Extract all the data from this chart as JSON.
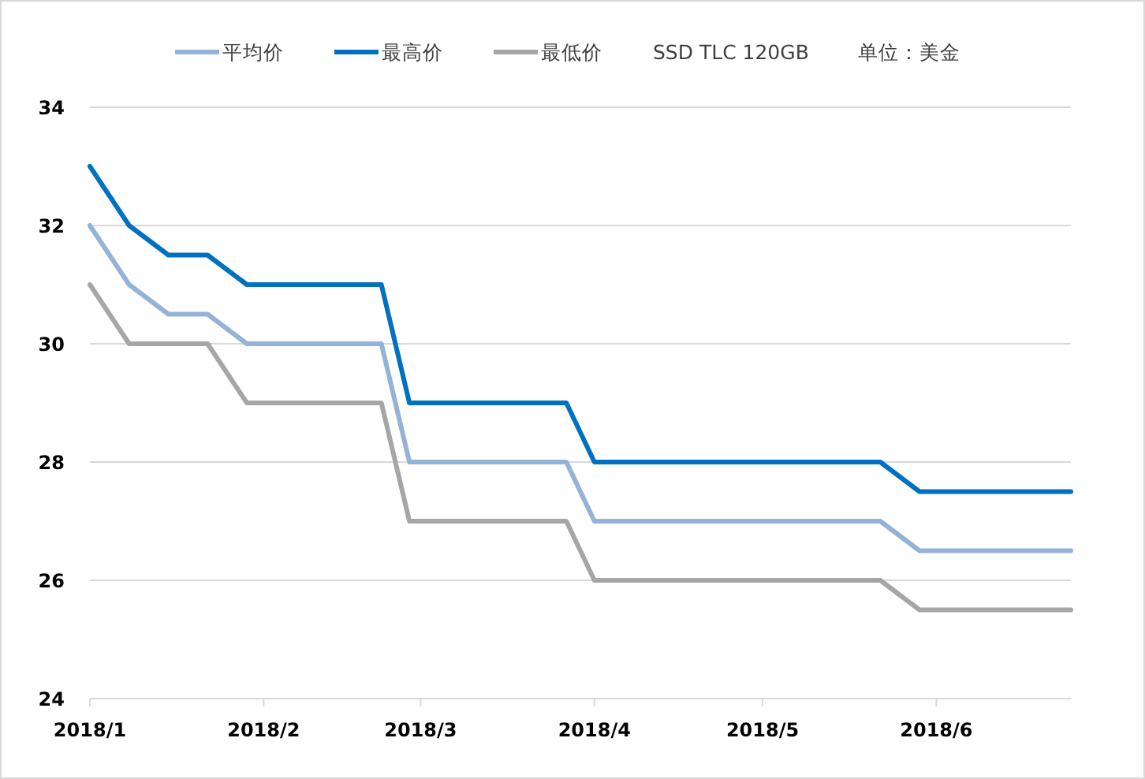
{
  "chart_data": {
    "type": "line",
    "x": [
      "2018-01-01",
      "2018-01-08",
      "2018-01-15",
      "2018-01-22",
      "2018-01-29",
      "2018-02-22",
      "2018-02-27",
      "2018-03-27",
      "2018-04-01",
      "2018-05-22",
      "2018-05-29",
      "2018-06-25"
    ],
    "series": [
      {
        "name": "平均价",
        "color": "#95b3d7",
        "values": [
          32,
          31,
          30.5,
          30.5,
          30,
          30,
          28,
          28,
          27,
          27,
          26.5,
          26.5
        ]
      },
      {
        "name": "最高价",
        "color": "#0070c0",
        "values": [
          33,
          32,
          31.5,
          31.5,
          31,
          31,
          29,
          29,
          28,
          28,
          27.5,
          27.5
        ]
      },
      {
        "name": "最低价",
        "color": "#a6a6a6",
        "values": [
          31,
          30,
          30,
          30,
          29,
          29,
          27,
          27,
          26,
          26,
          25.5,
          25.5
        ]
      }
    ],
    "annotations": [
      "SSD TLC 120GB",
      "单位：美金"
    ],
    "xlim": [
      "2018-01-01",
      "2018-06-25"
    ],
    "xticks": [
      {
        "value": "2018-01-01",
        "label": "2018/1"
      },
      {
        "value": "2018-02-01",
        "label": "2018/2"
      },
      {
        "value": "2018-03-01",
        "label": "2018/3"
      },
      {
        "value": "2018-04-01",
        "label": "2018/4"
      },
      {
        "value": "2018-05-01",
        "label": "2018/5"
      },
      {
        "value": "2018-06-01",
        "label": "2018/6"
      }
    ],
    "ylim": [
      24,
      34
    ],
    "yticks": [
      24,
      26,
      28,
      30,
      32,
      34
    ],
    "grid": "y",
    "legend": "top",
    "marker": "none",
    "line_style": "solid"
  }
}
